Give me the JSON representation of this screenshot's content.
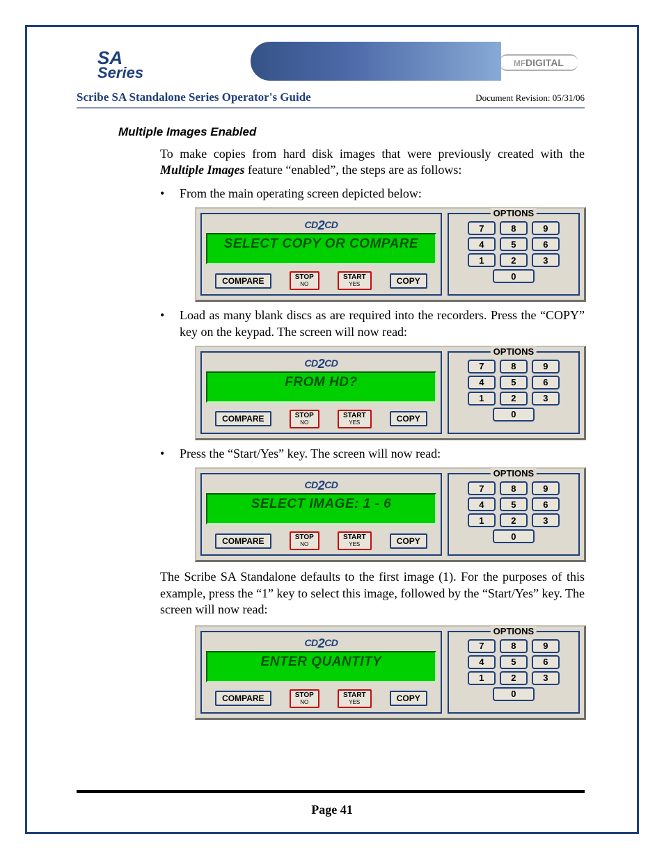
{
  "header": {
    "logoLeft": {
      "line1": "SA",
      "line2": "Series"
    },
    "logoRightLine1": "MF",
    "logoRightLine2": "DIGITAL",
    "title": "Scribe SA Standalone Series Operator's Guide",
    "revision": "Document Revision: 05/31/06"
  },
  "sectionTitle": "Multiple Images Enabled",
  "intro": {
    "pre": "To make copies from hard disk images that were previously created with the ",
    "bold": "Multiple Images",
    "post": " feature “enabled”, the steps are as follows:"
  },
  "bullet": "•",
  "li1": "From the main operating screen depicted below:",
  "li2": "Load as many blank discs as are required into the recorders. Press the “COPY” key on the keypad. The screen will now read:",
  "li3": "Press the “Start/Yes” key. The screen will now read:",
  "afterPanel3": "The Scribe SA Standalone defaults to the first image (1). For the purposes of this example, press the “1” key to select this image, followed by the “Start/Yes” key. The screen will now read:",
  "panelCommon": {
    "brand": "CD2CD",
    "compare": "COMPARE",
    "stop": "STOP",
    "stopSub": "NO",
    "start": "START",
    "startSub": "YES",
    "copy": "COPY",
    "optionsLegend": "OPTIONS",
    "keypad": [
      [
        "7",
        "8",
        "9"
      ],
      [
        "4",
        "5",
        "6"
      ],
      [
        "1",
        "2",
        "3"
      ],
      [
        "0"
      ]
    ],
    "colors": {
      "panel_bg": "#dedad0",
      "border_blue": "#1f3f7a",
      "border_red": "#c01010",
      "lcd_bg": "#00d000",
      "lcd_text": "#005000"
    }
  },
  "panels": [
    {
      "lcd": "SELECT COPY OR COMPARE"
    },
    {
      "lcd": "FROM HD?"
    },
    {
      "lcd": "SELECT IMAGE: 1 - 6"
    },
    {
      "lcd": "ENTER QUANTITY"
    }
  ],
  "footer": {
    "page": "Page 41"
  }
}
